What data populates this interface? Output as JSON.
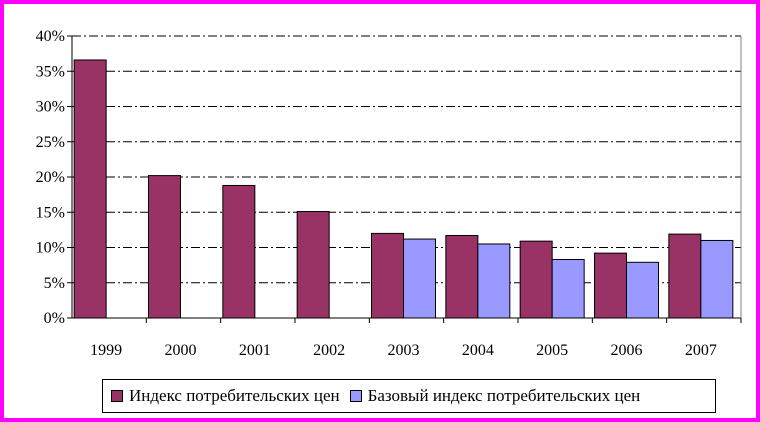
{
  "chart_data": {
    "type": "bar",
    "title": "",
    "xlabel": "",
    "ylabel": "",
    "categories": [
      "1999",
      "2000",
      "2001",
      "2002",
      "2003",
      "2004",
      "2005",
      "2006",
      "2007"
    ],
    "series": [
      {
        "name": "Индекс потребительских цен",
        "color": "#993366",
        "values": [
          36.6,
          20.2,
          18.8,
          15.1,
          12.0,
          11.7,
          10.9,
          9.2,
          11.9
        ]
      },
      {
        "name": "Базовый индекс потребительских цен",
        "color": "#9999ff",
        "values": [
          null,
          null,
          null,
          null,
          11.2,
          10.5,
          8.3,
          7.9,
          11.0
        ]
      }
    ],
    "ylim": [
      0,
      40
    ],
    "yticks": [
      0,
      5,
      10,
      15,
      20,
      25,
      30,
      35,
      40
    ],
    "ytick_labels": [
      "0%",
      "5%",
      "10%",
      "15%",
      "20%",
      "25%",
      "30%",
      "35%",
      "40%"
    ],
    "grid": true,
    "legend_position": "bottom",
    "frame_color": "#ff00ff"
  }
}
